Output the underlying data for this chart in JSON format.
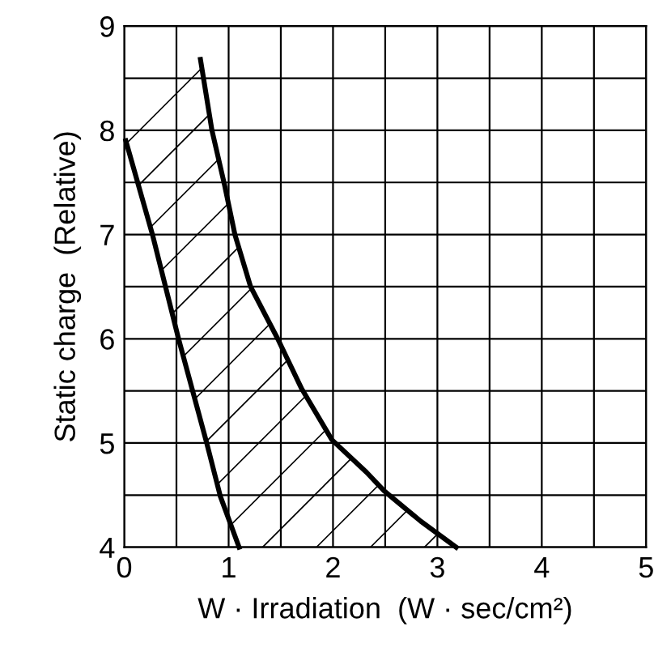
{
  "chart_data": {
    "type": "line",
    "xlabel": "W · Irradiation  (W · sec/cm²)",
    "ylabel": "Static charge  (Relative)",
    "xlim": [
      0,
      5
    ],
    "ylim": [
      4,
      9
    ],
    "xticks": [
      0,
      1,
      2,
      3,
      4,
      5
    ],
    "yticks": [
      4,
      5,
      6,
      7,
      8,
      9
    ],
    "grid": true,
    "line_style": "solid",
    "marker": "none",
    "series": [
      {
        "color": "#000000",
        "x": [
          0.015,
          0.27,
          0.52,
          0.79,
          0.92,
          1.1
        ],
        "values": [
          7.9,
          7.0,
          6.0,
          5.0,
          4.49,
          4.0
        ]
      },
      {
        "color": "#000000",
        "x": [
          0.73,
          0.84,
          0.96,
          1.06,
          1.21,
          1.47,
          1.7,
          1.99,
          2.32,
          2.49,
          2.84,
          3.18
        ],
        "values": [
          8.68,
          8.0,
          7.48,
          7.0,
          6.5,
          6.0,
          5.52,
          5.03,
          4.72,
          4.54,
          4.25,
          4.0
        ]
      }
    ]
  }
}
